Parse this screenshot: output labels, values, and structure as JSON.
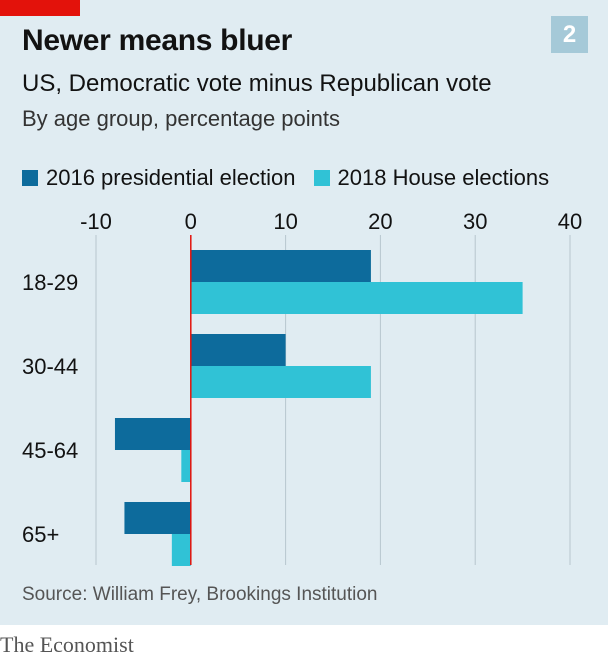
{
  "header": {
    "chart_number": "2",
    "title": "Newer means bluer",
    "subtitle": "US, Democratic vote minus Republican vote",
    "unit_note": "By age group, percentage points"
  },
  "footer": {
    "source": "Source: William Frey, Brookings Institution",
    "brand": "The Economist"
  },
  "colors": {
    "panel_bg": "#e0ecf2",
    "series_2016": "#0d6b9c",
    "series_2018": "#30c2d6",
    "zero_line": "#e3120b",
    "grid": "#b7c6ce",
    "brand_red": "#e3120b"
  },
  "chart_data": {
    "type": "bar",
    "orientation": "horizontal",
    "title": "Newer means bluer",
    "subtitle": "US, Democratic vote minus Republican vote",
    "unit": "By age group, percentage points",
    "categories": [
      "18-29",
      "30-44",
      "45-64",
      "65+"
    ],
    "series": [
      {
        "name": "2016 presidential election",
        "color": "#0d6b9c",
        "values": [
          19,
          10,
          -8,
          -7
        ]
      },
      {
        "name": "2018 House elections",
        "color": "#30c2d6",
        "values": [
          35,
          19,
          -1,
          -2
        ]
      }
    ],
    "xlim": [
      -10,
      40
    ],
    "xticks": [
      -10,
      0,
      10,
      20,
      30,
      40
    ],
    "xtick_labels": [
      "-10",
      "0",
      "10",
      "20",
      "30",
      "40"
    ],
    "grid": true,
    "legend_position": "top-left"
  }
}
